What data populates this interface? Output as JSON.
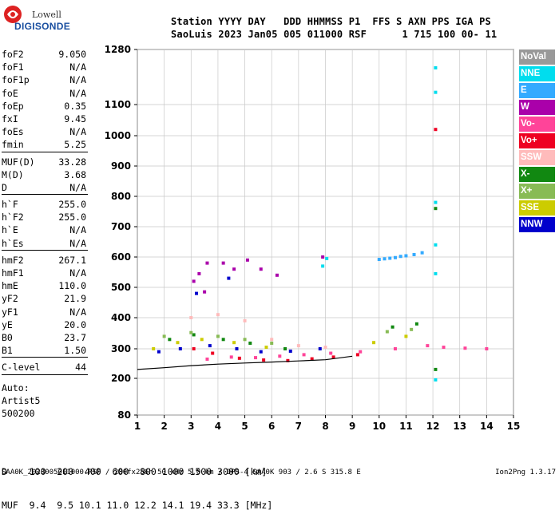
{
  "logo": {
    "line1": "Lowell",
    "line2": "DIGISONDE"
  },
  "header": {
    "line1": "Station YYYY DAY   DDD HHMMSS P1  FFS S AXN PPS IGA PS",
    "line2": "SaoLuis 2023 Jan05 005 011000 RSF      1 715 100 00- 11"
  },
  "params": {
    "group1": [
      {
        "label": "foF2",
        "value": "9.050"
      },
      {
        "label": "foF1",
        "value": "N/A"
      },
      {
        "label": "foF1p",
        "value": "N/A"
      },
      {
        "label": "foE",
        "value": "N/A"
      },
      {
        "label": "foEp",
        "value": "0.35"
      },
      {
        "label": "fxI",
        "value": "9.45"
      },
      {
        "label": "foEs",
        "value": "N/A"
      },
      {
        "label": "fmin",
        "value": "5.25"
      }
    ],
    "group2": [
      {
        "label": "MUF(D)",
        "value": "33.28"
      },
      {
        "label": "M(D)",
        "value": "3.68"
      },
      {
        "label": "D",
        "value": "N/A"
      }
    ],
    "group3": [
      {
        "label": "h`F",
        "value": "255.0"
      },
      {
        "label": "h`F2",
        "value": "255.0"
      },
      {
        "label": "h`E",
        "value": "N/A"
      },
      {
        "label": "h`Es",
        "value": "N/A"
      }
    ],
    "group4": [
      {
        "label": "hmF2",
        "value": "267.1"
      },
      {
        "label": "hmF1",
        "value": "N/A"
      },
      {
        "label": "hmE",
        "value": "110.0"
      },
      {
        "label": "yF2",
        "value": "21.9"
      },
      {
        "label": "yF1",
        "value": "N/A"
      },
      {
        "label": "yE",
        "value": "20.0"
      },
      {
        "label": "B0",
        "value": "23.7"
      },
      {
        "label": "B1",
        "value": "1.50"
      }
    ],
    "group5": [
      {
        "label": "C-level",
        "value": "44"
      }
    ]
  },
  "auto": {
    "line1": "Auto:",
    "line2": "Artist5",
    "line3": "500200"
  },
  "legend": [
    {
      "label": "NoVal",
      "color": "#999999"
    },
    {
      "label": "NNE",
      "color": "#00ddee"
    },
    {
      "label": "E",
      "color": "#33aaff"
    },
    {
      "label": "W",
      "color": "#aa00aa"
    },
    {
      "label": "Vo-",
      "color": "#ff4499"
    },
    {
      "label": "Vo+",
      "color": "#ee0022"
    },
    {
      "label": "SSW",
      "color": "#ffbbbb"
    },
    {
      "label": "X-",
      "color": "#118811"
    },
    {
      "label": "X+",
      "color": "#88bb55"
    },
    {
      "label": "SSE",
      "color": "#cccc00"
    },
    {
      "label": "NNW",
      "color": "#0000cc"
    }
  ],
  "distance_table": {
    "line1": "D    100  200  400  600  800 1000 1500 3000 [km]",
    "line2": "MUF  9.4  9.5 10.1 11.0 12.2 14.1 19.4 33.3 [MHz]"
  },
  "footer": {
    "text": "SAA0K_2023005011000.RSF / 280fx256h 50 kHz 5.0 km / DPS-4 SAA0K 903 / 2.6 S 315.8 E",
    "version": "Ion2Png 1.3.17"
  },
  "chart_data": {
    "type": "scatter",
    "title": "",
    "xlabel": "",
    "ylabel": "",
    "x_ticks": [
      1,
      2,
      3,
      4,
      5,
      6,
      7,
      8,
      9,
      10,
      11,
      12,
      13,
      14,
      15
    ],
    "y_ticks": [
      80,
      200,
      300,
      400,
      500,
      600,
      700,
      800,
      900,
      1000,
      1100,
      1280
    ],
    "xlim": [
      1,
      15
    ],
    "ylim": [
      80,
      1280
    ],
    "y_scale": "piecewise",
    "grid": true,
    "legend_position": "right",
    "series": [
      {
        "name": "E",
        "color": "#33aaff",
        "points": [
          [
            10.4,
            596
          ],
          [
            10.6,
            598
          ],
          [
            10.8,
            602
          ],
          [
            11.0,
            604
          ],
          [
            11.3,
            608
          ],
          [
            11.6,
            614
          ],
          [
            10.0,
            592
          ],
          [
            10.2,
            594
          ]
        ]
      },
      {
        "name": "NNE",
        "color": "#00ddee",
        "points": [
          [
            12.1,
            1220
          ],
          [
            12.1,
            1140
          ],
          [
            12.1,
            780
          ],
          [
            12.1,
            640
          ],
          [
            12.1,
            545
          ],
          [
            12.1,
            195
          ],
          [
            8.05,
            595
          ],
          [
            7.9,
            570
          ]
        ]
      },
      {
        "name": "W",
        "color": "#aa00aa",
        "points": [
          [
            3.1,
            520
          ],
          [
            3.3,
            545
          ],
          [
            3.6,
            580
          ],
          [
            4.2,
            580
          ],
          [
            5.1,
            590
          ],
          [
            5.6,
            560
          ],
          [
            6.2,
            540
          ],
          [
            7.9,
            600
          ],
          [
            3.5,
            485
          ],
          [
            4.6,
            560
          ]
        ]
      },
      {
        "name": "Vo-",
        "color": "#ff4499",
        "points": [
          [
            3.6,
            265
          ],
          [
            4.5,
            272
          ],
          [
            5.4,
            270
          ],
          [
            6.3,
            275
          ],
          [
            7.2,
            280
          ],
          [
            8.2,
            285
          ],
          [
            9.3,
            290
          ],
          [
            10.6,
            300
          ],
          [
            11.8,
            310
          ],
          [
            12.4,
            305
          ],
          [
            13.2,
            302
          ],
          [
            14.0,
            300
          ]
        ]
      },
      {
        "name": "Vo+",
        "color": "#ee0022",
        "points": [
          [
            3.1,
            300
          ],
          [
            3.8,
            285
          ],
          [
            4.8,
            268
          ],
          [
            5.7,
            262
          ],
          [
            6.6,
            260
          ],
          [
            7.5,
            266
          ],
          [
            8.3,
            272
          ],
          [
            9.2,
            280
          ],
          [
            12.1,
            1020
          ]
        ]
      },
      {
        "name": "SSW",
        "color": "#ffbbbb",
        "points": [
          [
            3.0,
            400
          ],
          [
            4.0,
            410
          ],
          [
            5.0,
            390
          ],
          [
            6.0,
            330
          ],
          [
            7.0,
            310
          ],
          [
            8.0,
            305
          ]
        ]
      },
      {
        "name": "X-",
        "color": "#118811",
        "points": [
          [
            2.2,
            330
          ],
          [
            3.1,
            345
          ],
          [
            4.2,
            330
          ],
          [
            5.2,
            318
          ],
          [
            6.5,
            300
          ],
          [
            10.5,
            370
          ],
          [
            11.4,
            380
          ],
          [
            12.1,
            760
          ],
          [
            12.1,
            230
          ]
        ]
      },
      {
        "name": "X+",
        "color": "#88bb55",
        "points": [
          [
            2.0,
            340
          ],
          [
            3.0,
            352
          ],
          [
            4.0,
            340
          ],
          [
            5.0,
            330
          ],
          [
            6.0,
            318
          ],
          [
            10.3,
            355
          ],
          [
            11.2,
            362
          ]
        ]
      },
      {
        "name": "SSE",
        "color": "#cccc00",
        "points": [
          [
            1.6,
            300
          ],
          [
            2.5,
            320
          ],
          [
            3.4,
            330
          ],
          [
            4.6,
            320
          ],
          [
            5.8,
            305
          ],
          [
            9.8,
            320
          ],
          [
            11.0,
            340
          ]
        ]
      },
      {
        "name": "NNW",
        "color": "#0000cc",
        "points": [
          [
            1.8,
            290
          ],
          [
            2.6,
            300
          ],
          [
            3.7,
            310
          ],
          [
            4.7,
            300
          ],
          [
            5.6,
            290
          ],
          [
            6.7,
            292
          ],
          [
            7.8,
            300
          ],
          [
            3.2,
            480
          ],
          [
            4.4,
            530
          ]
        ]
      }
    ],
    "trace": {
      "name": "",
      "points": [
        [
          1,
          230
        ],
        [
          2,
          236
        ],
        [
          3,
          243
        ],
        [
          4,
          248
        ],
        [
          5,
          252
        ],
        [
          6,
          255
        ],
        [
          7,
          259
        ],
        [
          8,
          263
        ],
        [
          9,
          275
        ]
      ]
    }
  }
}
